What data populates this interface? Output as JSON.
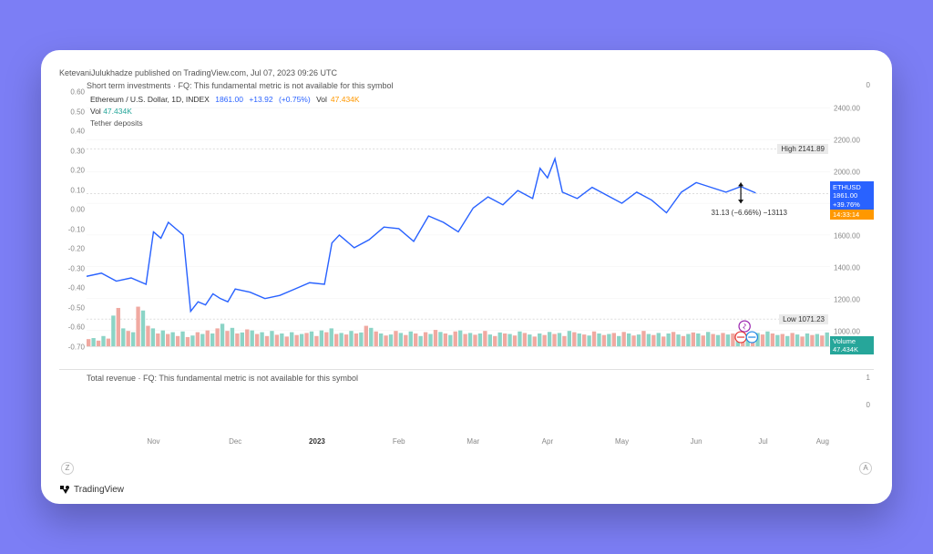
{
  "background_color": "#7c7ef5",
  "card_color": "#ffffff",
  "publisher_line": "KetevaniJulukhadze published on TradingView.com, Jul 07, 2023 09:26 UTC",
  "top_panel_label": "Short term investments · FQ: This fundamental metric is not available for this symbol",
  "top_panel_zero": "0",
  "symbol_line": {
    "name": "Ethereum / U.S. Dollar, 1D, INDEX",
    "last": "1861.00",
    "change": "+13.92",
    "change_pct": "(+0.75%)",
    "vol_label": "Vol",
    "vol_value": "47.434K"
  },
  "vol_line": {
    "label": "Vol",
    "value": "47.434K"
  },
  "tether_label": "Tether deposits",
  "left_axis": {
    "ticks": [
      0.6,
      0.5,
      0.4,
      0.3,
      0.2,
      0.1,
      0.0,
      -0.1,
      -0.2,
      -0.3,
      -0.4,
      -0.5,
      -0.6,
      -0.7
    ],
    "min": -0.7,
    "max": 0.6
  },
  "right_axis": {
    "ticks": [
      2400.0,
      2200.0,
      2000.0,
      1800.0,
      1600.0,
      1400.0,
      1200.0,
      1000.0
    ],
    "min": 900,
    "max": 2500
  },
  "high_label": "High",
  "high_value": "2141.89",
  "low_label": "Low",
  "low_value": "1071.23",
  "price_badge": {
    "sym": "ETHUSD",
    "price": "1861.00",
    "pct": "+39.76%",
    "countdown": "14:33:14"
  },
  "volume_badge": {
    "label": "Volume",
    "value": "47.434K"
  },
  "measure_label": "31.13 (−6.66%) −13113",
  "chart": {
    "type": "line",
    "line_color": "#2962ff",
    "xrange": [
      0,
      100
    ],
    "yrange": [
      900,
      2500
    ],
    "points": [
      [
        0,
        1340
      ],
      [
        2,
        1360
      ],
      [
        4,
        1310
      ],
      [
        6,
        1330
      ],
      [
        8,
        1290
      ],
      [
        9,
        1620
      ],
      [
        10,
        1580
      ],
      [
        11,
        1680
      ],
      [
        12,
        1640
      ],
      [
        13,
        1600
      ],
      [
        14,
        1120
      ],
      [
        15,
        1180
      ],
      [
        16,
        1160
      ],
      [
        17,
        1230
      ],
      [
        18,
        1200
      ],
      [
        19,
        1180
      ],
      [
        20,
        1260
      ],
      [
        22,
        1240
      ],
      [
        24,
        1200
      ],
      [
        26,
        1220
      ],
      [
        28,
        1260
      ],
      [
        30,
        1300
      ],
      [
        32,
        1290
      ],
      [
        33,
        1550
      ],
      [
        34,
        1600
      ],
      [
        36,
        1520
      ],
      [
        38,
        1570
      ],
      [
        40,
        1650
      ],
      [
        42,
        1640
      ],
      [
        44,
        1560
      ],
      [
        46,
        1720
      ],
      [
        48,
        1680
      ],
      [
        50,
        1620
      ],
      [
        52,
        1770
      ],
      [
        54,
        1840
      ],
      [
        56,
        1790
      ],
      [
        58,
        1880
      ],
      [
        60,
        1830
      ],
      [
        61,
        2020
      ],
      [
        62,
        1960
      ],
      [
        63,
        2080
      ],
      [
        64,
        1870
      ],
      [
        66,
        1830
      ],
      [
        68,
        1900
      ],
      [
        70,
        1850
      ],
      [
        72,
        1800
      ],
      [
        74,
        1870
      ],
      [
        76,
        1820
      ],
      [
        78,
        1740
      ],
      [
        80,
        1870
      ],
      [
        82,
        1930
      ],
      [
        84,
        1900
      ],
      [
        86,
        1870
      ],
      [
        88,
        1905
      ],
      [
        90,
        1865
      ]
    ],
    "grid_color": "#eeeeee",
    "dash_color": "#bbbbbb",
    "high_price": 2141.89,
    "low_price": 1071.23,
    "current_price": 1861.0
  },
  "volume": {
    "max": 160,
    "bars": [
      [
        -1,
        28
      ],
      [
        1,
        32
      ],
      [
        -1,
        22
      ],
      [
        1,
        40
      ],
      [
        -1,
        30
      ],
      [
        1,
        120
      ],
      [
        -1,
        150
      ],
      [
        1,
        70
      ],
      [
        -1,
        60
      ],
      [
        1,
        55
      ],
      [
        -1,
        155
      ],
      [
        1,
        140
      ],
      [
        -1,
        80
      ],
      [
        1,
        70
      ],
      [
        -1,
        50
      ],
      [
        1,
        62
      ],
      [
        -1,
        48
      ],
      [
        1,
        55
      ],
      [
        -1,
        40
      ],
      [
        1,
        58
      ],
      [
        -1,
        36
      ],
      [
        1,
        42
      ],
      [
        -1,
        55
      ],
      [
        1,
        48
      ],
      [
        -1,
        62
      ],
      [
        1,
        50
      ],
      [
        -1,
        70
      ],
      [
        1,
        88
      ],
      [
        -1,
        60
      ],
      [
        1,
        72
      ],
      [
        -1,
        50
      ],
      [
        1,
        54
      ],
      [
        -1,
        66
      ],
      [
        1,
        62
      ],
      [
        -1,
        48
      ],
      [
        1,
        55
      ],
      [
        -1,
        40
      ],
      [
        1,
        60
      ],
      [
        -1,
        45
      ],
      [
        1,
        50
      ],
      [
        -1,
        38
      ],
      [
        1,
        55
      ],
      [
        -1,
        44
      ],
      [
        1,
        48
      ],
      [
        -1,
        52
      ],
      [
        1,
        58
      ],
      [
        -1,
        40
      ],
      [
        1,
        62
      ],
      [
        -1,
        55
      ],
      [
        1,
        70
      ],
      [
        -1,
        48
      ],
      [
        1,
        52
      ],
      [
        -1,
        46
      ],
      [
        1,
        60
      ],
      [
        -1,
        50
      ],
      [
        1,
        54
      ],
      [
        -1,
        80
      ],
      [
        1,
        72
      ],
      [
        -1,
        58
      ],
      [
        1,
        50
      ],
      [
        -1,
        42
      ],
      [
        1,
        46
      ],
      [
        -1,
        60
      ],
      [
        1,
        52
      ],
      [
        -1,
        44
      ],
      [
        1,
        58
      ],
      [
        -1,
        50
      ],
      [
        1,
        40
      ],
      [
        -1,
        55
      ],
      [
        1,
        48
      ],
      [
        -1,
        64
      ],
      [
        1,
        56
      ],
      [
        -1,
        50
      ],
      [
        1,
        44
      ],
      [
        -1,
        58
      ],
      [
        1,
        62
      ],
      [
        -1,
        48
      ],
      [
        1,
        52
      ],
      [
        -1,
        45
      ],
      [
        1,
        50
      ],
      [
        -1,
        60
      ],
      [
        1,
        46
      ],
      [
        -1,
        40
      ],
      [
        1,
        54
      ],
      [
        -1,
        50
      ],
      [
        1,
        48
      ],
      [
        -1,
        42
      ],
      [
        1,
        58
      ],
      [
        -1,
        52
      ],
      [
        1,
        46
      ],
      [
        -1,
        38
      ],
      [
        1,
        50
      ],
      [
        -1,
        44
      ],
      [
        1,
        56
      ],
      [
        -1,
        48
      ],
      [
        1,
        52
      ],
      [
        -1,
        40
      ],
      [
        1,
        60
      ],
      [
        -1,
        55
      ],
      [
        1,
        50
      ],
      [
        -1,
        46
      ],
      [
        1,
        42
      ],
      [
        -1,
        58
      ],
      [
        1,
        50
      ],
      [
        -1,
        44
      ],
      [
        1,
        48
      ],
      [
        -1,
        52
      ],
      [
        1,
        40
      ],
      [
        -1,
        56
      ],
      [
        1,
        50
      ],
      [
        -1,
        42
      ],
      [
        1,
        46
      ],
      [
        -1,
        60
      ],
      [
        1,
        48
      ],
      [
        -1,
        44
      ],
      [
        1,
        52
      ],
      [
        -1,
        38
      ],
      [
        1,
        50
      ],
      [
        -1,
        56
      ],
      [
        1,
        46
      ],
      [
        -1,
        40
      ],
      [
        1,
        48
      ],
      [
        -1,
        54
      ],
      [
        1,
        50
      ],
      [
        -1,
        42
      ],
      [
        1,
        56
      ],
      [
        -1,
        48
      ],
      [
        1,
        44
      ],
      [
        -1,
        52
      ],
      [
        1,
        46
      ],
      [
        -1,
        50
      ],
      [
        1,
        40
      ],
      [
        -1,
        55
      ],
      [
        1,
        48
      ],
      [
        -1,
        42
      ],
      [
        1,
        52
      ],
      [
        -1,
        46
      ],
      [
        1,
        58
      ],
      [
        -1,
        50
      ],
      [
        1,
        44
      ],
      [
        -1,
        48
      ],
      [
        1,
        40
      ],
      [
        -1,
        52
      ],
      [
        1,
        46
      ],
      [
        -1,
        38
      ],
      [
        1,
        50
      ],
      [
        -1,
        44
      ],
      [
        1,
        48
      ],
      [
        -1,
        42
      ],
      [
        1,
        54
      ]
    ],
    "up_color": "#8bd4c6",
    "dn_color": "#f0a9a1"
  },
  "markers": {
    "lightning": true,
    "circle1_color": "#e53935",
    "circle2_color": "#1e88e5"
  },
  "lower_panel_label": "Total revenue · FQ: This fundamental metric is not available for this symbol",
  "lower_one": "1",
  "lower_zero": "0",
  "time_axis": {
    "labels": [
      {
        "pos": 9,
        "text": "Nov"
      },
      {
        "pos": 20,
        "text": "Dec"
      },
      {
        "pos": 31,
        "text": "2023",
        "bold": true
      },
      {
        "pos": 42,
        "text": "Feb"
      },
      {
        "pos": 52,
        "text": "Mar"
      },
      {
        "pos": 62,
        "text": "Apr"
      },
      {
        "pos": 72,
        "text": "May"
      },
      {
        "pos": 82,
        "text": "Jun"
      },
      {
        "pos": 91,
        "text": "Jul"
      },
      {
        "pos": 99,
        "text": "Aug"
      }
    ]
  },
  "zoom_out": "Z",
  "zoom_a": "A",
  "footer_brand": "TradingView"
}
